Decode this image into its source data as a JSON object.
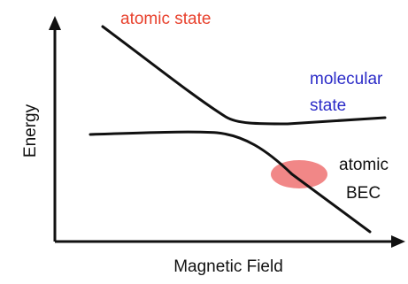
{
  "axes": {
    "ylabel": "Energy",
    "xlabel": "Magnetic Field"
  },
  "labels": {
    "atomic_state": "atomic state",
    "molecular_state_line1": "molecular",
    "molecular_state_line2": "state",
    "atomic_bec_line1": "atomic",
    "atomic_bec_line2": "BEC"
  },
  "colors": {
    "atomic_state": "#e8412d",
    "molecular_state": "#2c2cc8",
    "bec_blob": "#f07a7a",
    "ink": "#111111"
  }
}
